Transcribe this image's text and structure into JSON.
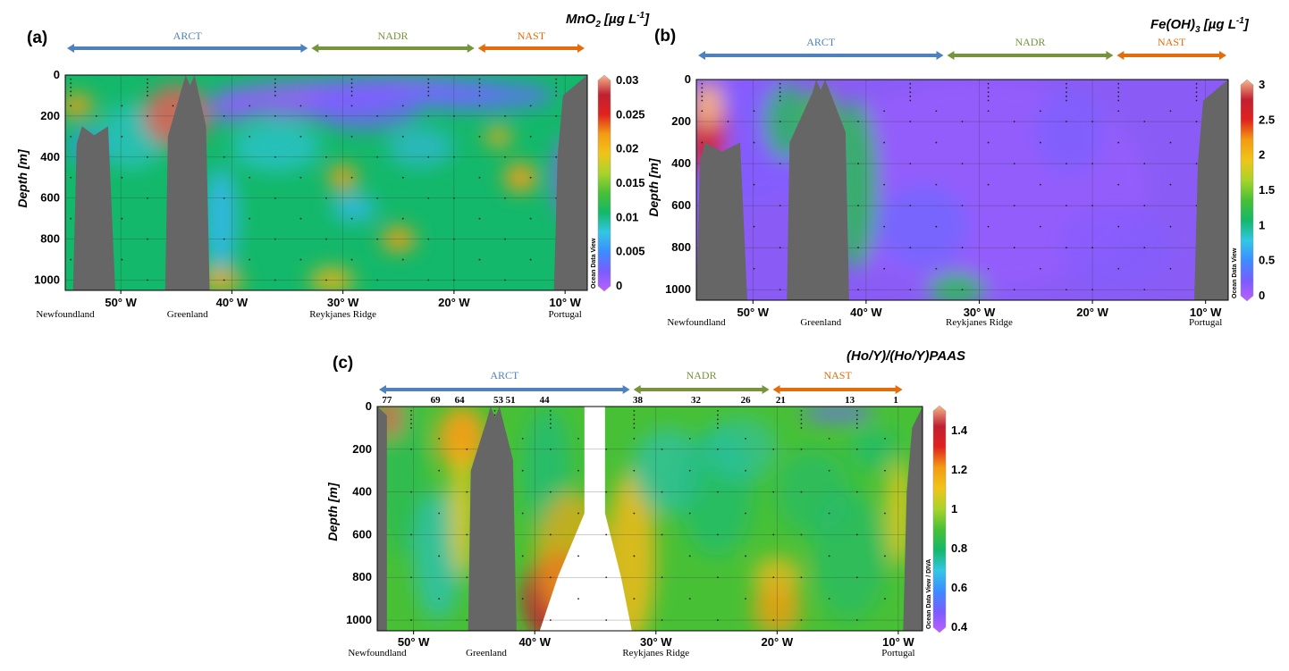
{
  "colors": {
    "ARCT": "#4f81bd",
    "NADR": "#77933c",
    "NAST": "#e46c0a",
    "topography": "#666666",
    "colormap": [
      "#bf5fff",
      "#7a5cff",
      "#3c8cff",
      "#33c6e6",
      "#13b86a",
      "#48c036",
      "#a9d42a",
      "#f0c419",
      "#f39c12",
      "#e0221f",
      "#c02032",
      "#f5b98c"
    ]
  },
  "chart_data": [
    {
      "type": "heatmap",
      "panel": "(a)",
      "colorbar_title": "MnO",
      "colorbar_sub": "2",
      "colorbar_unit": " [µg L",
      "colorbar_sup": "-1",
      "colorbar_close": "]",
      "ylabel": "Depth [m]",
      "ylim": [
        1050,
        0
      ],
      "xlim": [
        -55,
        -8
      ],
      "yticks": [
        0,
        200,
        400,
        600,
        800,
        1000
      ],
      "xticks": [
        {
          "x": -50,
          "label": "50° W"
        },
        {
          "x": -40,
          "label": "40° W"
        },
        {
          "x": -30,
          "label": "30° W"
        },
        {
          "x": -20,
          "label": "20° W"
        },
        {
          "x": -10,
          "label": "10° W"
        }
      ],
      "colorbar_ticks": [
        "0",
        "0.005",
        "0.01",
        "0.015",
        "0.02",
        "0.025",
        "0.03"
      ],
      "colorbar_range": [
        0,
        0.03
      ],
      "watermark": "Ocean Data View",
      "places": [
        {
          "x": -55,
          "label": "Newfoundland"
        },
        {
          "x": -44,
          "label": "Greenland"
        },
        {
          "x": -30,
          "label": "Reykjanes Ridge"
        },
        {
          "x": -10,
          "label": "Portugal"
        }
      ],
      "provinces": [
        {
          "name": "ARCT",
          "from": -55,
          "to": -33
        },
        {
          "name": "NADR",
          "from": -33,
          "to": -18
        },
        {
          "name": "NAST",
          "from": -18,
          "to": -8
        }
      ]
    },
    {
      "type": "heatmap",
      "panel": "(b)",
      "colorbar_title": "Fe(OH)",
      "colorbar_sub": "3",
      "colorbar_unit": " [µg L",
      "colorbar_sup": "-1",
      "colorbar_close": "]",
      "ylabel": "Depth [m]",
      "ylim": [
        1050,
        0
      ],
      "xlim": [
        -55,
        -8
      ],
      "yticks": [
        0,
        200,
        400,
        600,
        800,
        1000
      ],
      "xticks": [
        {
          "x": -50,
          "label": "50° W"
        },
        {
          "x": -40,
          "label": "40° W"
        },
        {
          "x": -30,
          "label": "30° W"
        },
        {
          "x": -20,
          "label": "20° W"
        },
        {
          "x": -10,
          "label": "10° W"
        }
      ],
      "colorbar_ticks": [
        "0",
        "0.5",
        "1",
        "1.5",
        "2",
        "2.5",
        "3"
      ],
      "colorbar_range": [
        0,
        3
      ],
      "watermark": "Ocean Data View",
      "places": [
        {
          "x": -55,
          "label": "Newfoundland"
        },
        {
          "x": -44,
          "label": "Greenland"
        },
        {
          "x": -30,
          "label": "Reykjanes Ridge"
        },
        {
          "x": -10,
          "label": "Portugal"
        }
      ],
      "provinces": [
        {
          "name": "ARCT",
          "from": -55,
          "to": -33
        },
        {
          "name": "NADR",
          "from": -33,
          "to": -18
        },
        {
          "name": "NAST",
          "from": -18,
          "to": -8
        }
      ]
    },
    {
      "type": "heatmap",
      "panel": "(c)",
      "colorbar_title": "(Ho/Y)/(Ho/Y)PAAS",
      "colorbar_sub": "",
      "colorbar_unit": "",
      "colorbar_sup": "",
      "colorbar_close": "",
      "ylabel": "Depth [m]",
      "ylim": [
        1050,
        0
      ],
      "xlim": [
        -53,
        -8
      ],
      "yticks": [
        0,
        200,
        400,
        600,
        800,
        1000
      ],
      "xticks": [
        {
          "x": -50,
          "label": "50° W"
        },
        {
          "x": -40,
          "label": "40° W"
        },
        {
          "x": -30,
          "label": "30° W"
        },
        {
          "x": -20,
          "label": "20° W"
        },
        {
          "x": -10,
          "label": "10° W"
        }
      ],
      "colorbar_ticks": [
        "0.4",
        "0.6",
        "0.8",
        "1",
        "1.2",
        "1.4"
      ],
      "colorbar_range": [
        0.4,
        1.5
      ],
      "watermark": "Ocean Data View / DIVA",
      "stations": [
        {
          "x": -52.2,
          "label": "77"
        },
        {
          "x": -48.2,
          "label": "69"
        },
        {
          "x": -46.2,
          "label": "64"
        },
        {
          "x": -43.0,
          "label": "53"
        },
        {
          "x": -42.0,
          "label": "51"
        },
        {
          "x": -39.2,
          "label": "44"
        },
        {
          "x": -31.5,
          "label": "38"
        },
        {
          "x": -26.7,
          "label": "32"
        },
        {
          "x": -22.6,
          "label": "26"
        },
        {
          "x": -19.7,
          "label": "21"
        },
        {
          "x": -14.0,
          "label": "13"
        },
        {
          "x": -10.2,
          "label": "1"
        }
      ],
      "places": [
        {
          "x": -53,
          "label": "Newfoundland"
        },
        {
          "x": -44,
          "label": "Greenland"
        },
        {
          "x": -30,
          "label": "Reykjanes Ridge"
        },
        {
          "x": -10,
          "label": "Portugal"
        }
      ],
      "provinces": [
        {
          "name": "ARCT",
          "from": -53,
          "to": -32
        },
        {
          "name": "NADR",
          "from": -32,
          "to": -20.5
        },
        {
          "name": "NAST",
          "from": -20.5,
          "to": -9.5
        }
      ]
    }
  ]
}
